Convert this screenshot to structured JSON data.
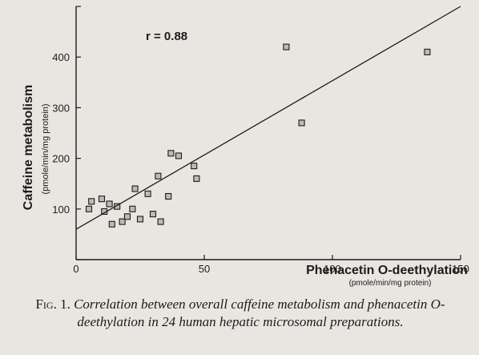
{
  "chart_data": {
    "type": "scatter",
    "xlabel": "Phenacetin O-deethylation",
    "xlabel_units": "(pmole/min/mg protein)",
    "ylabel": "Caffeine metabolism",
    "ylabel_units": "(pmole/min/mg protein)",
    "xlim": [
      0,
      150
    ],
    "ylim": [
      0,
      500
    ],
    "x_ticks": [
      0,
      50,
      100,
      150
    ],
    "y_ticks": [
      0,
      100,
      200,
      300,
      400,
      500
    ],
    "annotation": "r = 0.88",
    "grid": false,
    "legend": "none",
    "regression_line": {
      "x": [
        0,
        150
      ],
      "y": [
        60,
        500
      ]
    },
    "series": [
      {
        "points": [
          {
            "x": 5,
            "y": 100
          },
          {
            "x": 6,
            "y": 115
          },
          {
            "x": 10,
            "y": 120
          },
          {
            "x": 11,
            "y": 95
          },
          {
            "x": 13,
            "y": 110
          },
          {
            "x": 14,
            "y": 70
          },
          {
            "x": 16,
            "y": 105
          },
          {
            "x": 18,
            "y": 75
          },
          {
            "x": 20,
            "y": 85
          },
          {
            "x": 22,
            "y": 100
          },
          {
            "x": 23,
            "y": 140
          },
          {
            "x": 25,
            "y": 80
          },
          {
            "x": 28,
            "y": 130
          },
          {
            "x": 30,
            "y": 90
          },
          {
            "x": 32,
            "y": 165
          },
          {
            "x": 36,
            "y": 125
          },
          {
            "x": 33,
            "y": 75
          },
          {
            "x": 37,
            "y": 210
          },
          {
            "x": 40,
            "y": 205
          },
          {
            "x": 46,
            "y": 185
          },
          {
            "x": 47,
            "y": 160
          },
          {
            "x": 82,
            "y": 420
          },
          {
            "x": 88,
            "y": 270
          },
          {
            "x": 137,
            "y": 410
          }
        ]
      }
    ]
  },
  "caption": {
    "label": "Fig. 1.",
    "text": "Correlation between overall caffeine metabolism and phenacetin O-deethylation in 24 human hepatic microsomal preparations."
  },
  "colors": {
    "ink": "#1c1c1c",
    "paper": "#e9e6e1",
    "marker_fill": "#bdbab5"
  }
}
